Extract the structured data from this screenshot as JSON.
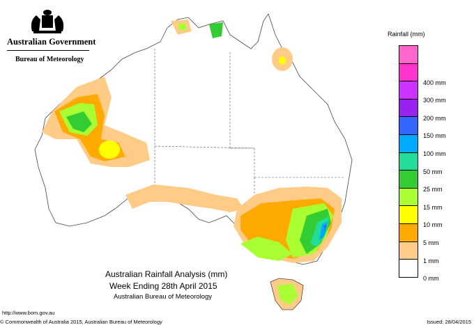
{
  "header": {
    "government": "Australian Government",
    "bureau": "Bureau of Meteorology"
  },
  "legend": {
    "title": "Rainfall (mm)",
    "items": [
      {
        "label": "",
        "color": "#ff66cc"
      },
      {
        "label": "400 mm",
        "color": "#ff33cc"
      },
      {
        "label": "300 mm",
        "color": "#cc33ff"
      },
      {
        "label": "200 mm",
        "color": "#9922ee"
      },
      {
        "label": "150 mm",
        "color": "#3366ff"
      },
      {
        "label": "100 mm",
        "color": "#00aaff"
      },
      {
        "label": "50 mm",
        "color": "#22dd99"
      },
      {
        "label": "25 mm",
        "color": "#33cc33"
      },
      {
        "label": "15 mm",
        "color": "#aaff33"
      },
      {
        "label": "10 mm",
        "color": "#ffff00"
      },
      {
        "label": "5 mm",
        "color": "#ffaa00"
      },
      {
        "label": "1 mm",
        "color": "#ffcc88"
      },
      {
        "label": "0 mm",
        "color": "#ffffff"
      }
    ]
  },
  "map_title": {
    "line1": "Australian Rainfall Analysis (mm)",
    "line2": "Week Ending 28th April 2015",
    "line3": "Australian Bureau of Meteorology"
  },
  "footer": {
    "url": "http://www.bom.gov.au",
    "copyright": "© Commonwealth of Australia 2015, Australian Bureau of Meteorology",
    "issued": "Issued: 28/04/2015"
  }
}
